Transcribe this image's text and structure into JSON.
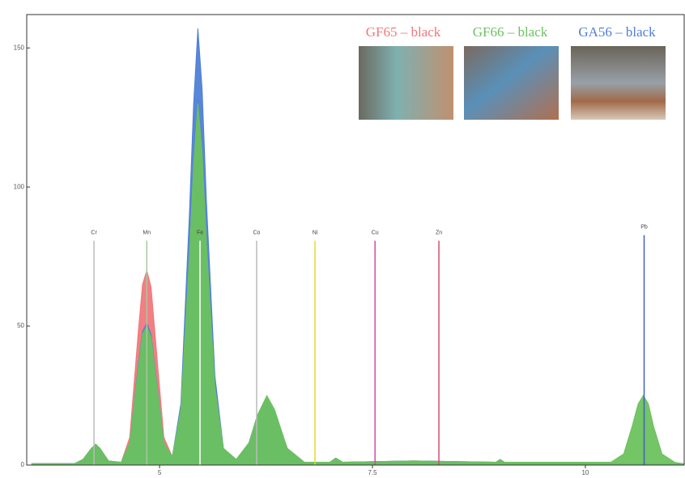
{
  "chart_data": {
    "type": "area",
    "x": [
      3.5,
      4.0,
      4.1,
      4.2,
      4.25,
      4.3,
      4.4,
      4.55,
      4.65,
      4.75,
      4.8,
      4.85,
      4.9,
      4.95,
      5.05,
      5.15,
      5.25,
      5.35,
      5.4,
      5.45,
      5.5,
      5.55,
      5.65,
      5.75,
      5.9,
      6.05,
      6.15,
      6.26,
      6.35,
      6.5,
      6.7,
      7.0,
      7.07,
      7.15,
      8.0,
      8.95,
      9.0,
      9.05,
      10.3,
      10.45,
      10.55,
      10.62,
      10.68,
      10.74,
      10.8,
      10.9,
      11.05,
      11.15
    ],
    "series": [
      {
        "name": "GF65 – black",
        "color": "#f0787c",
        "values": [
          0.5,
          0.5,
          2,
          6,
          7.5,
          6,
          1.5,
          1,
          10,
          48,
          65,
          70,
          64,
          46,
          10,
          3,
          20,
          76,
          110,
          132,
          113,
          80,
          28,
          6,
          2,
          8,
          18,
          24,
          19,
          6,
          1,
          1,
          2.5,
          1,
          1.5,
          1,
          2,
          1,
          0.5,
          0.5,
          0.5,
          0.5,
          0.5,
          0.5,
          0.5,
          0.5,
          0.5,
          0.5
        ]
      },
      {
        "name": "GA56 – black",
        "color": "#4f7fd6",
        "values": [
          0.5,
          0.5,
          2,
          6,
          7.5,
          6,
          1.5,
          1,
          8,
          36,
          48,
          51,
          47,
          34,
          8,
          3,
          22,
          90,
          130,
          157,
          135,
          95,
          32,
          6,
          2,
          8,
          18,
          24,
          19,
          6,
          1,
          1,
          2.5,
          1,
          1.5,
          1,
          2,
          1,
          0.5,
          0.5,
          0.5,
          0.5,
          0.5,
          0.5,
          0.5,
          0.5,
          0.5,
          0.5
        ]
      },
      {
        "name": "GF66 – black",
        "color": "#6cc25e",
        "values": [
          0.5,
          0.5,
          2,
          6,
          7.5,
          6,
          1.5,
          1,
          8,
          35,
          47,
          50,
          46,
          33,
          8,
          3,
          20,
          75,
          108,
          130,
          112,
          80,
          28,
          6,
          2,
          8,
          18,
          25,
          20,
          6,
          1,
          1,
          2.5,
          1,
          1.5,
          1,
          2,
          1,
          1,
          4,
          14,
          22,
          25,
          22,
          14,
          4,
          1,
          0.5
        ]
      }
    ],
    "element_lines": [
      {
        "label": "Cr",
        "x": 4.23,
        "height": 83,
        "color": "#bbbbbb"
      },
      {
        "label": "Mn",
        "x": 4.85,
        "height": 83,
        "color": "#a8c8a0"
      },
      {
        "label": "Fe",
        "x": 5.475,
        "height": 83,
        "color": "#ffffff"
      },
      {
        "label": "Co",
        "x": 6.14,
        "height": 83,
        "color": "#bbbbbb"
      },
      {
        "label": "Ni",
        "x": 6.825,
        "height": 83,
        "color": "#e8d830"
      },
      {
        "label": "Cu",
        "x": 7.53,
        "height": 83,
        "color": "#d04aa0"
      },
      {
        "label": "Zn",
        "x": 8.28,
        "height": 83,
        "color": "#d0506a"
      },
      {
        "label": "Pb",
        "x": 10.69,
        "height": 85,
        "color": "#4060c0"
      }
    ],
    "xlim": [
      3.44,
      11.17
    ],
    "xticks": [
      5,
      7.5,
      10
    ],
    "ylim": [
      0,
      162
    ],
    "yticks": [
      0,
      50,
      100,
      150
    ],
    "legend": "top-right"
  }
}
